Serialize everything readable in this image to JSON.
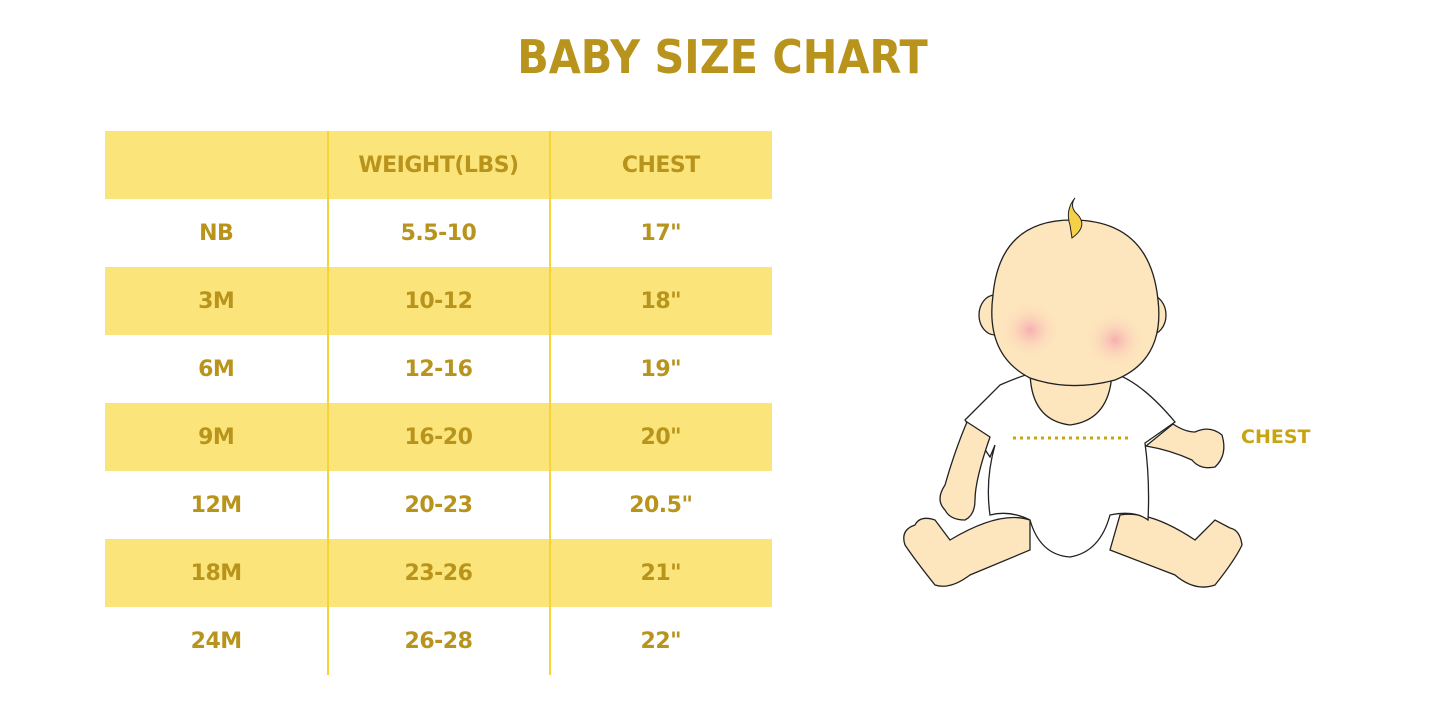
{
  "title": "BABY SIZE CHART",
  "table": {
    "headers": [
      "",
      "WEIGHT(LBS)",
      "CHEST"
    ],
    "rows": [
      [
        "NB",
        "5.5-10",
        "17\""
      ],
      [
        "3M",
        "10-12",
        "18\""
      ],
      [
        "6M",
        "12-16",
        "19\""
      ],
      [
        "9M",
        "16-20",
        "20\""
      ],
      [
        "12M",
        "20-23",
        "20.5\""
      ],
      [
        "18M",
        "23-26",
        "21\""
      ],
      [
        "24M",
        "26-28",
        "22\""
      ]
    ]
  },
  "illustration": {
    "chest_label": "CHEST"
  },
  "colors": {
    "accent": "#b8941c",
    "stripe": "#fbe57a",
    "divider": "#f7d23b",
    "skin": "#fde5bd"
  }
}
